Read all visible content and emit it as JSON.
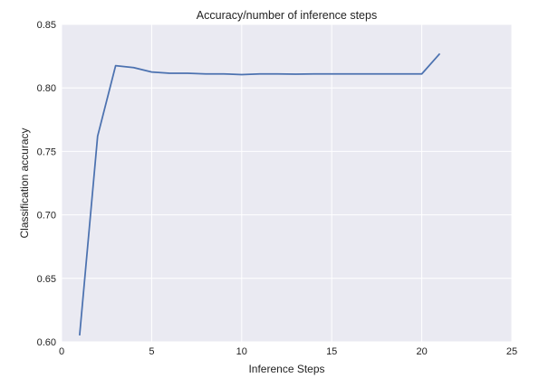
{
  "chart_data": {
    "type": "line",
    "title": "Accuracy/number of inference steps",
    "xlabel": "Inference Steps",
    "ylabel": "Classification accuracy",
    "xlim": [
      0,
      25
    ],
    "ylim": [
      0.6,
      0.85
    ],
    "xticks": [
      "0",
      "5",
      "10",
      "15",
      "20",
      "25"
    ],
    "yticks": [
      "0.60",
      "0.65",
      "0.70",
      "0.75",
      "0.80",
      "0.85"
    ],
    "grid": true,
    "legend": "none",
    "series": [
      {
        "color": "#4c72b0",
        "x": [
          1,
          2,
          3,
          4,
          5,
          6,
          7,
          8,
          9,
          10,
          11,
          12,
          13,
          14,
          15,
          16,
          17,
          18,
          19,
          20,
          21
        ],
        "y": [
          0.605,
          0.762,
          0.8175,
          0.816,
          0.8125,
          0.8115,
          0.8115,
          0.811,
          0.811,
          0.8105,
          0.811,
          0.811,
          0.8108,
          0.811,
          0.811,
          0.811,
          0.811,
          0.811,
          0.811,
          0.811,
          0.827
        ]
      }
    ]
  }
}
